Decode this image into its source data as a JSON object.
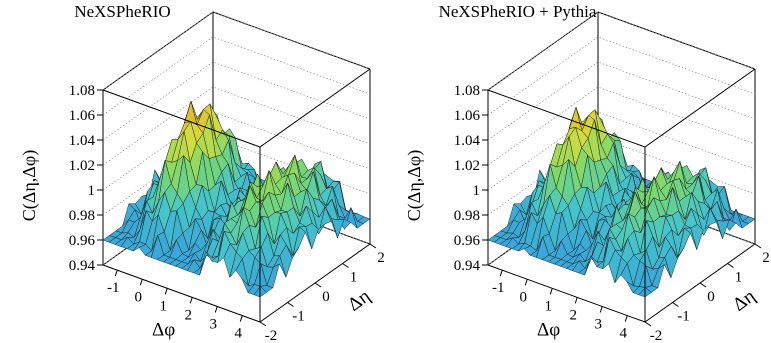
{
  "chart_data": [
    {
      "type": "surface3d",
      "title": "NeXSPheRIO",
      "xlabel": "Δφ",
      "ylabel": "Δη",
      "zlabel": "C(Δη,Δφ)",
      "xticks": [
        "-1",
        "0",
        "1",
        "2",
        "3",
        "4"
      ],
      "yticks": [
        "-2",
        "-1",
        "0",
        "1",
        "2"
      ],
      "zticks": [
        "0.94",
        "0.96",
        "0.98",
        "1",
        "1.02",
        "1.04",
        "1.06",
        "1.08"
      ],
      "xlim": [
        -1.57,
        4.71
      ],
      "ylim": [
        -2,
        2
      ],
      "zlim": [
        0.94,
        1.08
      ],
      "near_side_peak": 1.07,
      "away_side_peak": 1.04,
      "colormap": [
        "#3aa8d8",
        "#47c6c8",
        "#7ed86a",
        "#d8dc3a",
        "#e89a2a",
        "#c8501c"
      ]
    },
    {
      "type": "surface3d",
      "title": "NeXSPheRIO + Pythia",
      "xlabel": "Δφ",
      "ylabel": "Δη",
      "zlabel": "C(Δη,Δφ)",
      "xticks": [
        "-1",
        "0",
        "1",
        "2",
        "3",
        "4"
      ],
      "yticks": [
        "-2",
        "-1",
        "0",
        "1",
        "2"
      ],
      "zticks": [
        "0.94",
        "0.96",
        "0.98",
        "1",
        "1.02",
        "1.04",
        "1.06",
        "1.08"
      ],
      "xlim": [
        -1.57,
        4.71
      ],
      "ylim": [
        -2,
        2
      ],
      "zlim": [
        0.94,
        1.08
      ],
      "near_side_peak": 1.065,
      "away_side_peak": 1.035,
      "colormap": [
        "#3aa8d8",
        "#47c6c8",
        "#7ed86a",
        "#d8dc3a",
        "#e89a2a",
        "#c8501c"
      ]
    }
  ]
}
